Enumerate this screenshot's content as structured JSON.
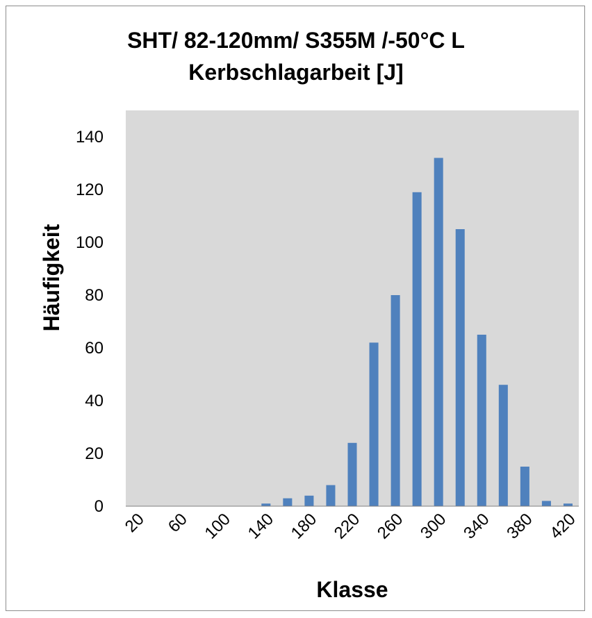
{
  "chart_data": {
    "type": "bar",
    "title": "SHT/ 82-120mm/ S355M /-50°C  L",
    "subtitle": "Kerbschlagarbeit [J]",
    "xlabel": "Klasse",
    "ylabel": "Häufigkeit",
    "ylim": [
      0,
      150
    ],
    "yticks": [
      0,
      20,
      40,
      60,
      80,
      100,
      120,
      140
    ],
    "categories": [
      20,
      40,
      60,
      80,
      100,
      120,
      140,
      160,
      180,
      200,
      220,
      240,
      260,
      280,
      300,
      320,
      340,
      360,
      380,
      400,
      420
    ],
    "x_tick_labels": [
      "20",
      "60",
      "100",
      "140",
      "180",
      "220",
      "260",
      "300",
      "340",
      "380",
      "420"
    ],
    "values": [
      0,
      0,
      0,
      0,
      0,
      0,
      1,
      3,
      4,
      8,
      24,
      62,
      80,
      119,
      132,
      105,
      65,
      46,
      15,
      2,
      1
    ],
    "grid": false,
    "legend": "none",
    "colors": {
      "bar": "#4f81bd",
      "plot_bg": "#d9d9d9",
      "axis": "#808080"
    }
  }
}
